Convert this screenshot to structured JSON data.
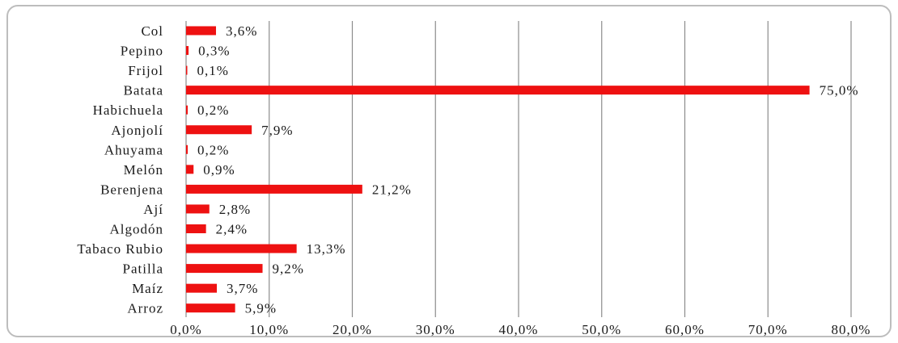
{
  "chart_data": {
    "type": "bar",
    "orientation": "horizontal",
    "categories": [
      "Col",
      "Pepino",
      "Frijol",
      "Batata",
      "Habichuela",
      "Ajonjolí",
      "Ahuyama",
      "Melón",
      "Berenjena",
      "Ají",
      "Algodón",
      "Tabaco Rubio",
      "Patilla",
      "Maíz",
      "Arroz"
    ],
    "values": [
      3.6,
      0.3,
      0.1,
      75.0,
      0.2,
      7.9,
      0.2,
      0.9,
      21.2,
      2.8,
      2.4,
      13.3,
      9.2,
      3.7,
      5.9
    ],
    "value_labels": [
      "3,6%",
      "0,3%",
      "0,1%",
      "75,0%",
      "0,2%",
      "7,9%",
      "0,2%",
      "0,9%",
      "21,2%",
      "2,8%",
      "2,4%",
      "13,3%",
      "9,2%",
      "3,7%",
      "5,9%"
    ],
    "xlim": [
      0,
      80
    ],
    "xticks": [
      0,
      10,
      20,
      30,
      40,
      50,
      60,
      70,
      80
    ],
    "xtick_labels": [
      "0,0%",
      "10,0%",
      "20,0%",
      "30,0%",
      "40,0%",
      "50,0%",
      "60,0%",
      "70,0%",
      "80,0%"
    ],
    "title": "",
    "xlabel": "",
    "ylabel": "",
    "grid": "vertical",
    "bar_color": "#ee1111",
    "grid_color": "#8c8c8c"
  }
}
